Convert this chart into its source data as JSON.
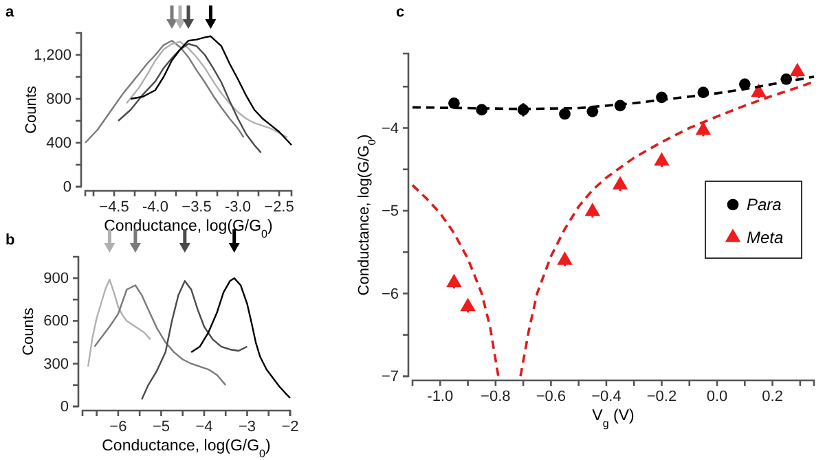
{
  "chart_data": [
    {
      "type": "line",
      "title": "a",
      "xlabel": "Conductance, log(G/G$_{0}$)",
      "ylabel": "Counts",
      "xlim": [
        -4.85,
        -2.35
      ],
      "ylim": [
        0,
        1400
      ],
      "xticks": [
        {
          "value": -4.75,
          "label": null
        },
        -4.5,
        {
          "value": -4.25,
          "label": null
        },
        {
          "value": -4,
          "label": "-4.0"
        },
        {
          "value": -3.75,
          "label": null
        },
        -3.5,
        {
          "value": -3.25,
          "label": null
        },
        {
          "value": -3,
          "label": "-3.0"
        },
        {
          "value": -2.75,
          "label": null
        },
        -2.5
      ],
      "yticks": [
        0,
        {
          "value": 200,
          "label": null
        },
        400,
        {
          "value": 600,
          "label": null
        },
        800,
        {
          "value": 1000,
          "label": null
        },
        {
          "value": 1200,
          "label": "1,200"
        }
      ],
      "grid": false,
      "legend": false,
      "series": [
        {
          "color": "#7a7a7a",
          "x": [
            -4.85,
            -4.7,
            -4.55,
            -4.4,
            -4.25,
            -4.1,
            -4.0,
            -3.9,
            -3.8,
            -3.7,
            -3.6,
            -3.5,
            -3.4,
            -3.3,
            -3.2,
            -3.1,
            -3.0,
            -2.93
          ],
          "values": [
            400,
            520,
            680,
            840,
            980,
            1120,
            1200,
            1290,
            1330,
            1270,
            1180,
            1060,
            950,
            830,
            720,
            620,
            530,
            450
          ]
        },
        {
          "color": "#b0b0b0",
          "x": [
            -4.35,
            -4.2,
            -4.1,
            -4.0,
            -3.9,
            -3.8,
            -3.7,
            -3.6,
            -3.5,
            -3.4,
            -3.3,
            -3.2,
            -3.1,
            -3.0,
            -2.9,
            -2.8,
            -2.6,
            -2.4
          ],
          "values": [
            760,
            900,
            1020,
            1150,
            1250,
            1300,
            1320,
            1260,
            1180,
            1080,
            960,
            850,
            760,
            680,
            620,
            580,
            530,
            450
          ]
        },
        {
          "color": "#4a4a4a",
          "x": [
            -4.45,
            -4.3,
            -4.15,
            -4.0,
            -3.9,
            -3.8,
            -3.7,
            -3.6,
            -3.5,
            -3.4,
            -3.3,
            -3.2,
            -3.1,
            -3.0,
            -2.9,
            -2.8,
            -2.72
          ],
          "values": [
            600,
            700,
            840,
            960,
            1080,
            1170,
            1250,
            1300,
            1280,
            1200,
            1080,
            950,
            780,
            620,
            480,
            380,
            310
          ]
        },
        {
          "color": "#000000",
          "x": [
            -4.3,
            -4.15,
            -4.0,
            -3.9,
            -3.8,
            -3.7,
            -3.6,
            -3.5,
            -3.4,
            -3.33,
            -3.2,
            -3.1,
            -3.0,
            -2.9,
            -2.8,
            -2.7,
            -2.6,
            -2.5,
            -2.4,
            -2.35
          ],
          "values": [
            800,
            820,
            880,
            1000,
            1150,
            1250,
            1330,
            1340,
            1360,
            1370,
            1280,
            1120,
            980,
            830,
            700,
            620,
            560,
            500,
            420,
            380
          ]
        }
      ]
    },
    {
      "type": "line",
      "title": "b",
      "xlabel": "Conductance, log(G/G$_{0}$)",
      "ylabel": "Counts",
      "xlim": [
        -6.83,
        -2
      ],
      "ylim": [
        0,
        1050
      ],
      "xticks": [
        {
          "value": -6.5,
          "label": null
        },
        -6,
        {
          "value": -5.5,
          "label": null
        },
        -5,
        {
          "value": -4.5,
          "label": null
        },
        -4,
        {
          "value": -3.5,
          "label": null
        },
        -3,
        {
          "value": -2.5,
          "label": null
        },
        -2
      ],
      "yticks": [
        0,
        {
          "value": 150,
          "label": null
        },
        300,
        {
          "value": 450,
          "label": null
        },
        600,
        {
          "value": 750,
          "label": null
        },
        900
      ],
      "grid": false,
      "legend": false,
      "series": [
        {
          "color": "#b0b0b0",
          "x": [
            -6.7,
            -6.6,
            -6.5,
            -6.4,
            -6.3,
            -6.2,
            -6.1,
            -6.0,
            -5.9,
            -5.8,
            -5.6,
            -5.4,
            -5.25
          ],
          "values": [
            280,
            480,
            620,
            720,
            820,
            890,
            800,
            700,
            640,
            600,
            560,
            520,
            470
          ]
        },
        {
          "color": "#7a7a7a",
          "x": [
            -6.55,
            -6.4,
            -6.2,
            -6.0,
            -5.8,
            -5.6,
            -5.45,
            -5.3,
            -5.1,
            -4.9,
            -4.7,
            -4.5,
            -4.3,
            -4.1,
            -3.9,
            -3.7,
            -3.5
          ],
          "values": [
            420,
            480,
            560,
            650,
            820,
            850,
            780,
            680,
            550,
            450,
            380,
            330,
            300,
            280,
            260,
            220,
            150
          ]
        },
        {
          "color": "#4a4a4a",
          "x": [
            -5.45,
            -5.3,
            -5.1,
            -4.9,
            -4.75,
            -4.6,
            -4.45,
            -4.3,
            -4.15,
            -4.0,
            -3.8,
            -3.6,
            -3.4,
            -3.2,
            -3.0
          ],
          "values": [
            50,
            150,
            250,
            380,
            600,
            780,
            880,
            820,
            680,
            560,
            470,
            420,
            400,
            390,
            420
          ]
        },
        {
          "color": "#000000",
          "x": [
            -4.3,
            -4.1,
            -3.9,
            -3.7,
            -3.55,
            -3.4,
            -3.3,
            -3.15,
            -3.0,
            -2.9,
            -2.8,
            -2.7,
            -2.55,
            -2.4,
            -2.25,
            -2.1,
            -2.0
          ],
          "values": [
            380,
            420,
            520,
            660,
            800,
            880,
            900,
            850,
            720,
            590,
            450,
            350,
            260,
            200,
            140,
            90,
            60
          ]
        }
      ]
    },
    {
      "type": "scatter",
      "title": "c",
      "xlabel": "V$_{g}$ (V)",
      "ylabel": "Conductance, log(G/G$_{0}$)",
      "xlim": [
        -1.1,
        0.35
      ],
      "ylim": [
        -7,
        -3.1
      ],
      "xticks": [
        {
          "value": -1,
          "label": "-1.0"
        },
        {
          "value": -0.9,
          "label": null
        },
        -0.8,
        {
          "value": -0.7,
          "label": null
        },
        -0.6,
        {
          "value": -0.5,
          "label": null
        },
        -0.4,
        {
          "value": -0.3,
          "label": null
        },
        -0.2,
        {
          "value": -0.1,
          "label": null
        },
        {
          "value": 0,
          "label": "0.0"
        },
        {
          "value": 0.1,
          "label": null
        },
        0.2,
        {
          "value": 0.3,
          "label": null
        }
      ],
      "yticks": [
        -7,
        {
          "value": -6.5,
          "label": null
        },
        -6,
        {
          "value": -5.5,
          "label": null
        },
        -5,
        {
          "value": -4.5,
          "label": null
        },
        -4,
        {
          "value": -3.5,
          "label": null
        }
      ],
      "grid": false,
      "legend": "right",
      "series": [
        {
          "name": "Para",
          "marker": "circle",
          "color": "#000000",
          "x": [
            -0.95,
            -0.85,
            -0.7,
            -0.55,
            -0.45,
            -0.35,
            -0.2,
            -0.05,
            0.1,
            0.25
          ],
          "values": [
            -3.7,
            -3.78,
            -3.78,
            -3.83,
            -3.8,
            -3.73,
            -3.63,
            -3.57,
            -3.47,
            -3.41
          ],
          "errors": [
            0.05,
            0.04,
            0.08,
            0.05,
            0.06,
            0.05,
            0.05,
            0.05,
            0.04,
            0.04
          ]
        },
        {
          "name": "Meta",
          "marker": "triangle",
          "color": "#ee1c1c",
          "x": [
            -0.95,
            -0.9,
            -0.55,
            -0.45,
            -0.35,
            -0.2,
            -0.05,
            0.15,
            0.29
          ],
          "values": [
            -5.87,
            -6.16,
            -5.6,
            -5.01,
            -4.69,
            -4.4,
            -4.03,
            -3.57,
            -3.32
          ],
          "errors": [
            0.07,
            0.07,
            0.07,
            0.07,
            0.07,
            0.07,
            0.07,
            0.07,
            0.07
          ]
        },
        {
          "type": "line",
          "line_style": "dashed",
          "color": "#000000",
          "x": [
            -1.1,
            -0.9,
            -0.7,
            -0.5,
            -0.4,
            -0.3,
            -0.2,
            -0.1,
            0,
            0.1,
            0.2,
            0.3,
            0.35
          ],
          "values": [
            -3.75,
            -3.76,
            -3.77,
            -3.76,
            -3.73,
            -3.7,
            -3.66,
            -3.62,
            -3.58,
            -3.53,
            -3.47,
            -3.41,
            -3.38
          ]
        },
        {
          "type": "line",
          "line_style": "dashed",
          "color": "#dd1c1c",
          "x": [
            -1.1,
            -1.05,
            -1.0,
            -0.95,
            -0.9,
            -0.85,
            -0.82,
            -0.79
          ],
          "values": [
            -4.69,
            -4.85,
            -5.03,
            -5.27,
            -5.58,
            -6.0,
            -6.4,
            -7
          ]
        },
        {
          "type": "line",
          "line_style": "dashed",
          "color": "#dd1c1c",
          "x": [
            -0.71,
            -0.68,
            -0.65,
            -0.6,
            -0.55,
            -0.5,
            -0.45,
            -0.4,
            -0.3,
            -0.2,
            -0.1,
            0,
            0.1,
            0.2,
            0.3,
            0.35
          ],
          "values": [
            -7,
            -6.45,
            -6.0,
            -5.55,
            -5.22,
            -4.95,
            -4.75,
            -4.6,
            -4.36,
            -4.17,
            -4.0,
            -3.86,
            -3.73,
            -3.61,
            -3.5,
            -3.44
          ]
        }
      ]
    }
  ]
}
